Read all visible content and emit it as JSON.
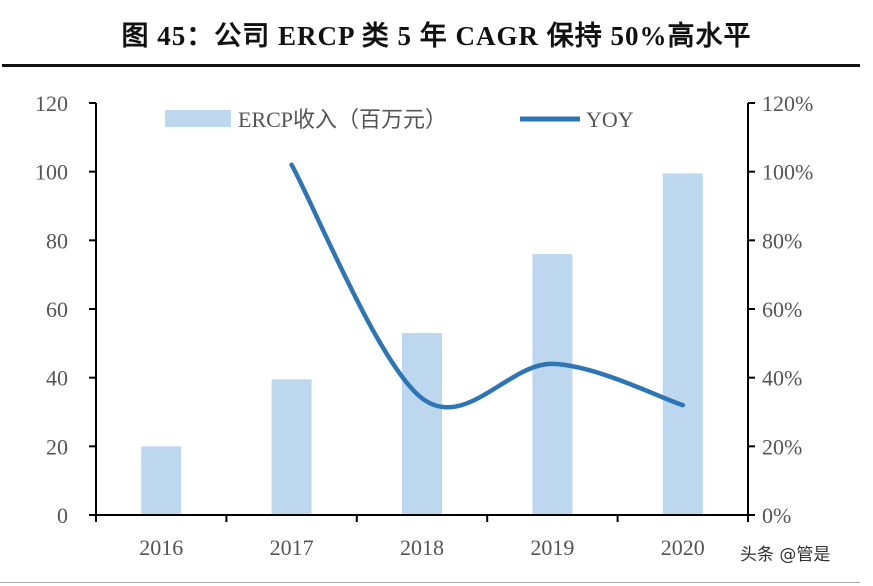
{
  "title": "图 45：公司 ERCP 类 5 年 CAGR 保持 50%高水平",
  "watermark": "头条 @管是",
  "chart_data": {
    "type": "bar+line",
    "categories": [
      "2016",
      "2017",
      "2018",
      "2019",
      "2020"
    ],
    "series": [
      {
        "name": "ERCP收入（百万元）",
        "type": "bar",
        "axis": "left",
        "color": "#BDD7EE",
        "values": [
          20,
          39.5,
          53,
          76,
          99.5
        ]
      },
      {
        "name": "YOY",
        "type": "line",
        "axis": "right",
        "color": "#2E75B6",
        "values": [
          null,
          1.02,
          0.34,
          0.44,
          0.32
        ]
      }
    ],
    "left_axis": {
      "ylim": [
        0,
        120
      ],
      "ticks": [
        "0",
        "20",
        "40",
        "60",
        "80",
        "100",
        "120"
      ]
    },
    "right_axis": {
      "ylim": [
        0,
        1.2
      ],
      "ticks": [
        "0%",
        "20%",
        "40%",
        "60%",
        "80%",
        "100%",
        "120%"
      ]
    },
    "legend": "top",
    "grid": false
  }
}
